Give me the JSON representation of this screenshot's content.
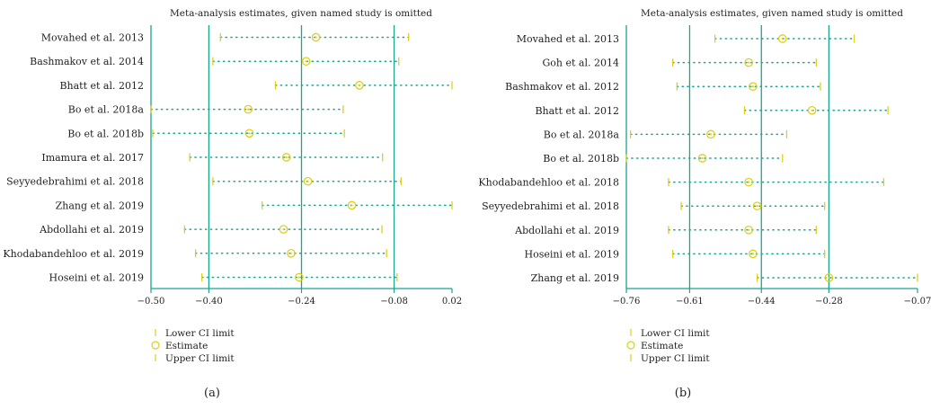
{
  "colors": {
    "axis": "#1aa58f",
    "ci_dots": "#1aa58f",
    "markers": "#e0cf1a",
    "text": "#222222"
  },
  "chart_data": [
    {
      "type": "forest",
      "panel_label": "(a)",
      "title": "Meta-analysis estimates, given named study is omitted",
      "xlim": [
        -0.5,
        0.02
      ],
      "ticks": [
        -0.5,
        -0.4,
        -0.24,
        -0.08,
        0.02
      ],
      "tick_labels": [
        "−0.50",
        "−0.40",
        "−0.24",
        "−0.08",
        "0.02"
      ],
      "reference_lines": [
        -0.4,
        -0.24,
        -0.08
      ],
      "rows": [
        {
          "study": "Movahed et al. 2013",
          "lower": -0.38,
          "estimate": -0.215,
          "upper": -0.055
        },
        {
          "study": "Bashmakov et al. 2014",
          "lower": -0.393,
          "estimate": -0.232,
          "upper": -0.072
        },
        {
          "study": "Bhatt et al. 2012",
          "lower": -0.285,
          "estimate": -0.14,
          "upper": 0.02
        },
        {
          "study": "Bo et al. 2018a",
          "lower": -0.5,
          "estimate": -0.332,
          "upper": -0.168
        },
        {
          "study": "Bo et al. 2018b",
          "lower": -0.497,
          "estimate": -0.33,
          "upper": -0.166
        },
        {
          "study": "Imamura et al. 2017",
          "lower": -0.433,
          "estimate": -0.266,
          "upper": -0.1
        },
        {
          "study": "Seyyedebrahimi et al. 2018",
          "lower": -0.393,
          "estimate": -0.229,
          "upper": -0.068
        },
        {
          "study": "Zhang et al. 2019",
          "lower": -0.308,
          "estimate": -0.153,
          "upper": 0.02
        },
        {
          "study": "Abdollahi et al. 2019",
          "lower": -0.442,
          "estimate": -0.271,
          "upper": -0.101
        },
        {
          "study": "Khodabandehloo et al. 2019",
          "lower": -0.423,
          "estimate": -0.258,
          "upper": -0.093
        },
        {
          "study": "Hoseini et al. 2019",
          "lower": -0.412,
          "estimate": -0.244,
          "upper": -0.075
        }
      ],
      "legend": [
        "Lower CI limit",
        "Estimate",
        "Upper CI limit"
      ]
    },
    {
      "type": "forest",
      "panel_label": "(b)",
      "title": "Meta-analysis estimates, given named study is omitted",
      "xlim": [
        -0.76,
        -0.07
      ],
      "ticks": [
        -0.76,
        -0.61,
        -0.44,
        -0.28,
        -0.07
      ],
      "tick_labels": [
        "−0.76",
        "−0.61",
        "−0.44",
        "−0.28",
        "−0.07"
      ],
      "reference_lines": [
        -0.61,
        -0.44,
        -0.28
      ],
      "rows": [
        {
          "study": "Movahed et al. 2013",
          "lower": -0.55,
          "estimate": -0.39,
          "upper": -0.22
        },
        {
          "study": "Goh et al. 2014",
          "lower": -0.65,
          "estimate": -0.47,
          "upper": -0.31
        },
        {
          "study": "Bashmakov et al. 2012",
          "lower": -0.64,
          "estimate": -0.46,
          "upper": -0.3
        },
        {
          "study": "Bhatt et al. 2012",
          "lower": -0.48,
          "estimate": -0.32,
          "upper": -0.14
        },
        {
          "study": "Bo et al. 2018a",
          "lower": -0.75,
          "estimate": -0.56,
          "upper": -0.38
        },
        {
          "study": "Bo et al. 2018b",
          "lower": -0.76,
          "estimate": -0.58,
          "upper": -0.39
        },
        {
          "study": "Khodabandehloo et al. 2018",
          "lower": -0.66,
          "estimate": -0.47,
          "upper": -0.15
        },
        {
          "study": "Seyyedebrahimi et al. 2018",
          "lower": -0.63,
          "estimate": -0.45,
          "upper": -0.29
        },
        {
          "study": "Abdollahi et al. 2019",
          "lower": -0.66,
          "estimate": -0.47,
          "upper": -0.31
        },
        {
          "study": "Hoseini et al. 2019",
          "lower": -0.65,
          "estimate": -0.46,
          "upper": -0.29
        },
        {
          "study": "Zhang et al. 2019",
          "lower": -0.45,
          "estimate": -0.28,
          "upper": -0.07
        }
      ],
      "legend": [
        "Lower CI limit",
        "Estimate",
        "Upper CI limit"
      ]
    }
  ]
}
